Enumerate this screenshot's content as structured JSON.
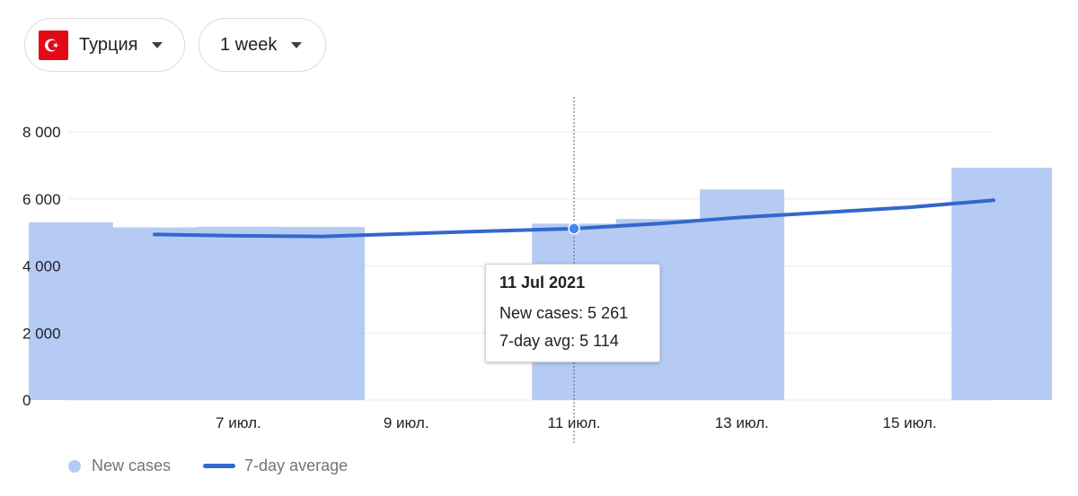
{
  "controls": {
    "country": {
      "label": "Турция",
      "flag_icon": "turkey-flag-icon"
    },
    "range": {
      "label": "1 week"
    }
  },
  "tooltip": {
    "date": "11 Jul 2021",
    "new_cases_label": "New cases",
    "new_cases_value": "5 261",
    "avg_label": "7-day avg",
    "avg_value": "5 114"
  },
  "legend": {
    "new_cases": "New cases",
    "avg": "7-day average"
  },
  "colors": {
    "bar": "#b5cbf4",
    "line": "#3367cc",
    "grid": "#e8eaed"
  },
  "chart_data": {
    "type": "bar",
    "x": [
      "2021-07-05",
      "2021-07-06",
      "2021-07-07",
      "2021-07-08",
      "2021-07-09",
      "2021-07-10",
      "2021-07-11",
      "2021-07-12",
      "2021-07-13",
      "2021-07-14",
      "2021-07-15",
      "2021-07-16",
      "2021-07-17"
    ],
    "xticks": [
      {
        "date": "2021-07-07",
        "label": "7 июл."
      },
      {
        "date": "2021-07-09",
        "label": "9 июл."
      },
      {
        "date": "2021-07-11",
        "label": "11 июл."
      },
      {
        "date": "2021-07-13",
        "label": "13 июл."
      },
      {
        "date": "2021-07-15",
        "label": "15 июл."
      }
    ],
    "series": [
      {
        "name": "New cases",
        "type": "bar",
        "values": [
          5300,
          5150,
          5170,
          5160,
          null,
          null,
          5261,
          5400,
          6280,
          null,
          null,
          6930,
          6930
        ]
      },
      {
        "name": "7-day average",
        "type": "line",
        "values": [
          null,
          4940,
          4900,
          4880,
          4960,
          5040,
          5114,
          5260,
          5450,
          5600,
          5750,
          5960,
          null
        ]
      }
    ],
    "ylim": [
      0,
      8000
    ],
    "yticks": [
      "0",
      "2 000",
      "4 000",
      "6 000",
      "8 000"
    ],
    "ytick_values": [
      0,
      2000,
      4000,
      6000,
      8000
    ],
    "grid": true,
    "highlight": "2021-07-11",
    "legend_position": "bottom-left"
  }
}
